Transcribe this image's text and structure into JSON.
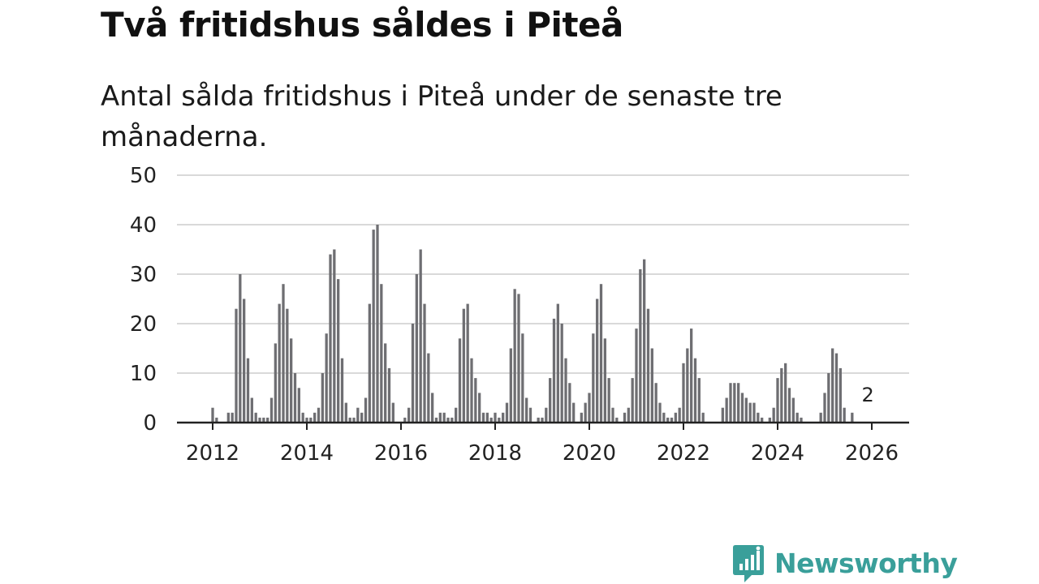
{
  "header": {
    "title": "Två fritidshus såldes i Piteå",
    "subtitle": "Antal sålda fritidshus i Piteå under de senaste tre månaderna."
  },
  "brand": {
    "name": "Newsworthy",
    "color": "#3a9f9a"
  },
  "colors": {
    "bar": "#6e6e72",
    "highlight": "#2aa198",
    "grid": "#d9d9d9",
    "axis": "#222222"
  },
  "chart_data": {
    "type": "bar",
    "title": "Två fritidshus såldes i Piteå",
    "subtitle": "Antal sålda fritidshus i Piteå under de senaste tre månaderna.",
    "xlabel": "",
    "ylabel": "",
    "ylim": [
      0,
      50
    ],
    "y_ticks": [
      0,
      10,
      20,
      30,
      40,
      50
    ],
    "x_ticks": [
      "2012",
      "2014",
      "2016",
      "2018",
      "2020",
      "2022",
      "2024",
      "2026"
    ],
    "grid": true,
    "start": "2012-01",
    "frequency": "monthly",
    "values": [
      3,
      1,
      0,
      0,
      2,
      2,
      23,
      30,
      25,
      13,
      5,
      2,
      1,
      1,
      1,
      5,
      16,
      24,
      28,
      23,
      17,
      10,
      7,
      2,
      1,
      1,
      2,
      3,
      10,
      18,
      34,
      35,
      29,
      13,
      4,
      1,
      1,
      3,
      2,
      5,
      24,
      39,
      40,
      28,
      16,
      11,
      4,
      0,
      0,
      1,
      3,
      20,
      30,
      35,
      24,
      14,
      6,
      1,
      2,
      2,
      1,
      1,
      3,
      17,
      23,
      24,
      13,
      9,
      6,
      2,
      2,
      1,
      2,
      1,
      2,
      4,
      15,
      27,
      26,
      18,
      5,
      3,
      0,
      1,
      1,
      3,
      9,
      21,
      24,
      20,
      13,
      8,
      4,
      0,
      2,
      4,
      6,
      18,
      25,
      28,
      17,
      9,
      3,
      1,
      0,
      2,
      3,
      9,
      19,
      31,
      33,
      23,
      15,
      8,
      4,
      2,
      1,
      1,
      2,
      3,
      12,
      15,
      19,
      13,
      9,
      2,
      0,
      0,
      0,
      0,
      3,
      5,
      8,
      8,
      8,
      6,
      5,
      4,
      4,
      2,
      1,
      0,
      1,
      3,
      9,
      11,
      12,
      7,
      5,
      2,
      1,
      0,
      0,
      0,
      0,
      2,
      6,
      10,
      15,
      14,
      11,
      3,
      0,
      2
    ],
    "highlight": {
      "index": 167,
      "value": 2,
      "label": "2"
    }
  }
}
